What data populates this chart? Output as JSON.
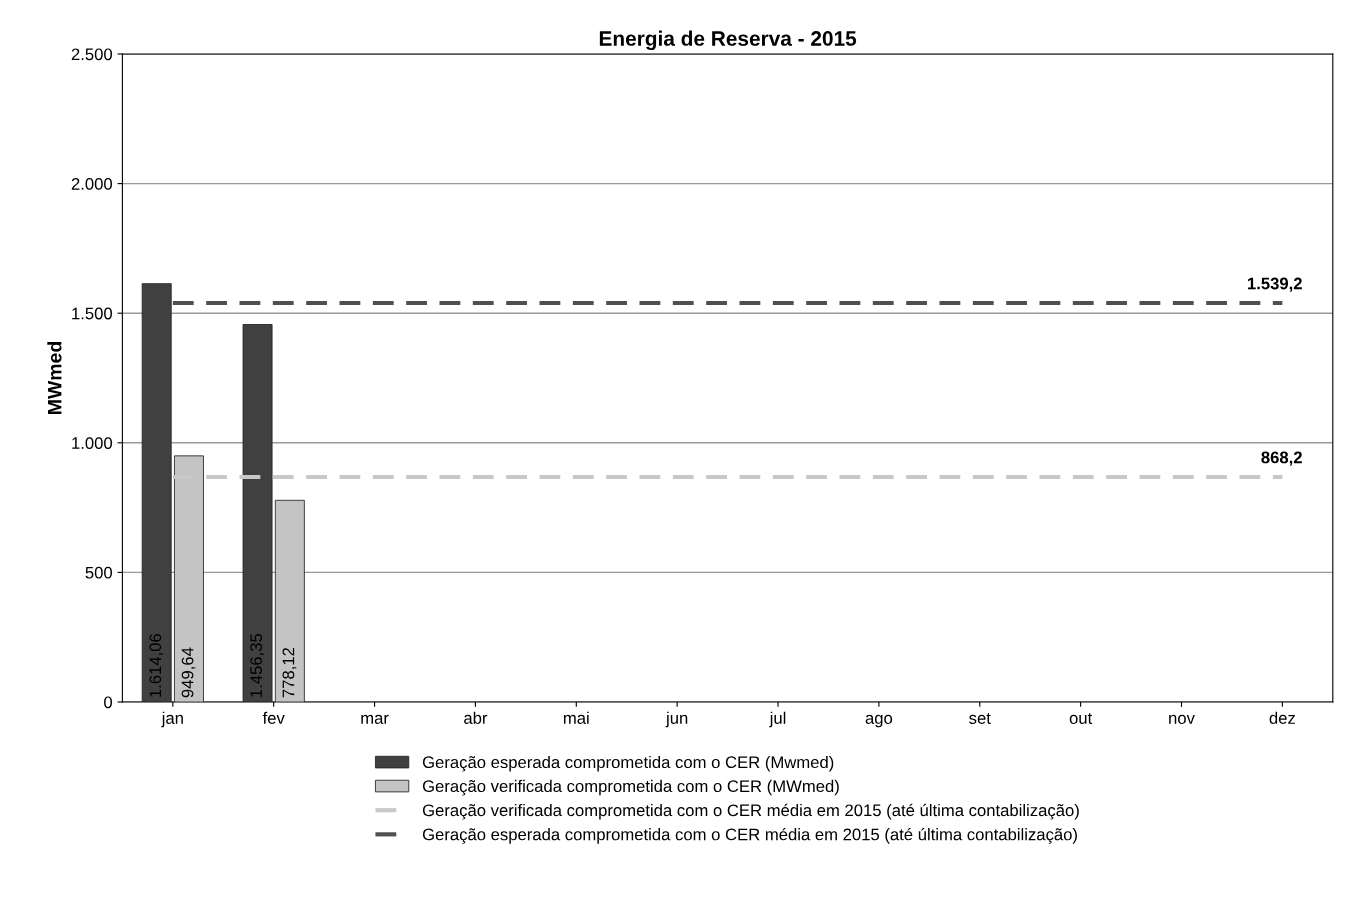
{
  "chart_data": {
    "type": "bar",
    "title": "Energia de Reserva - 2015",
    "ylabel": "MWmed",
    "categories": [
      "jan",
      "fev",
      "mar",
      "abr",
      "mai",
      "jun",
      "jul",
      "ago",
      "set",
      "out",
      "nov",
      "dez"
    ],
    "series": [
      {
        "name": "Geração esperada comprometida com o CER (Mwmed)",
        "color": "#404040",
        "values": [
          1614.06,
          1456.35,
          null,
          null,
          null,
          null,
          null,
          null,
          null,
          null,
          null,
          null
        ],
        "value_labels": [
          "1.614,06",
          "1.456,35",
          null,
          null,
          null,
          null,
          null,
          null,
          null,
          null,
          null,
          null
        ]
      },
      {
        "name": "Geração verificada comprometida com o CER (MWmed)",
        "color": "#c4c4c4",
        "values": [
          949.64,
          778.12,
          null,
          null,
          null,
          null,
          null,
          null,
          null,
          null,
          null,
          null
        ],
        "value_labels": [
          "949,64",
          "778,12",
          null,
          null,
          null,
          null,
          null,
          null,
          null,
          null,
          null,
          null
        ]
      },
      {
        "name": "Geração verificada comprometida com o CER média em 2015 (até última contabilização)",
        "type": "line",
        "line_style": "dashed",
        "color": "#c8c8c8",
        "values": [
          868.2,
          868.2,
          868.2,
          868.2,
          868.2,
          868.2,
          868.2,
          868.2,
          868.2,
          868.2,
          868.2,
          868.2
        ],
        "value_labels": [
          null,
          null,
          null,
          null,
          null,
          null,
          null,
          null,
          null,
          null,
          null,
          "868,2"
        ]
      },
      {
        "name": "Geração esperada comprometida com o CER média em 2015 (até última contabilização)",
        "type": "line",
        "line_style": "dashed",
        "color": "#505050",
        "values": [
          1539.2,
          1539.2,
          1539.2,
          1539.2,
          1539.2,
          1539.2,
          1539.2,
          1539.2,
          1539.2,
          1539.2,
          1539.2,
          1539.2
        ],
        "value_labels": [
          null,
          null,
          null,
          null,
          null,
          null,
          null,
          null,
          null,
          null,
          null,
          "1.539,2"
        ]
      }
    ],
    "ylim": [
      0,
      2500
    ],
    "yticks": [
      {
        "value": 0,
        "label": "0"
      },
      {
        "value": 500,
        "label": "500"
      },
      {
        "value": 1000,
        "label": "1.000"
      },
      {
        "value": 1500,
        "label": "1.500"
      },
      {
        "value": 2000,
        "label": "2.000"
      },
      {
        "value": 2500,
        "label": "2.500"
      }
    ],
    "grid": "y",
    "legend": "bottom"
  }
}
